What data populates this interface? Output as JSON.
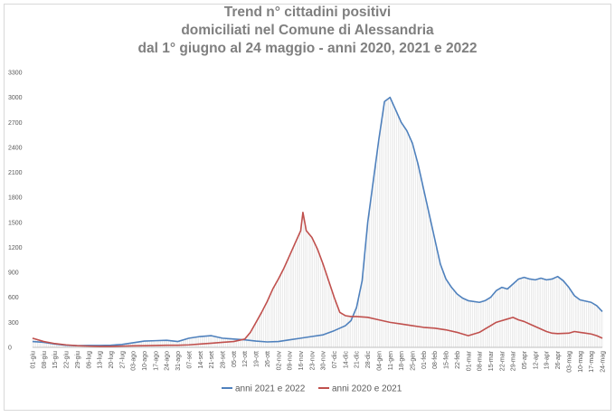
{
  "chart_data": {
    "type": "line",
    "title_lines": [
      "Trend n° cittadini positivi",
      "domiciliati nel Comune di Alessandria",
      "dal 1° giugno al 24 maggio - anni 2020, 2021 e 2022"
    ],
    "ylim": [
      0,
      3300
    ],
    "yticks": [
      0,
      300,
      600,
      900,
      1200,
      1500,
      1800,
      2100,
      2400,
      2700,
      3000,
      3300
    ],
    "x_labels": [
      "01-giu",
      "08-giu",
      "15-giu",
      "22-giu",
      "29-giu",
      "06-lug",
      "13-lug",
      "20-lug",
      "27-lug",
      "03-ago",
      "10-ago",
      "17-ago",
      "24-ago",
      "31-ago",
      "07-set",
      "14-set",
      "21-set",
      "28-set",
      "05-ott",
      "12-ott",
      "19-ott",
      "26-ott",
      "02-nov",
      "09-nov",
      "16-nov",
      "23-nov",
      "30-nov",
      "07-dic",
      "14-dic",
      "21-dic",
      "28-dic",
      "04-gen",
      "11-gen",
      "18-gen",
      "25-gen",
      "01-feb",
      "08-feb",
      "15-feb",
      "22-feb",
      "01-mar",
      "08-mar",
      "15-mar",
      "22-mar",
      "29-mar",
      "05-apr",
      "12-apr",
      "19-apr",
      "26-apr",
      "03-mag",
      "10-mag",
      "17-mag",
      "24-mag"
    ],
    "grid": false,
    "legend_position": "bottom",
    "series": [
      {
        "name": "anni 2021 e 2022",
        "color": "#4f81bd",
        "points": [
          [
            0,
            70
          ],
          [
            1,
            60
          ],
          [
            2,
            40
          ],
          [
            3,
            25
          ],
          [
            4,
            20
          ],
          [
            5,
            22
          ],
          [
            6,
            22
          ],
          [
            7,
            25
          ],
          [
            8,
            35
          ],
          [
            9,
            55
          ],
          [
            10,
            75
          ],
          [
            11,
            80
          ],
          [
            12,
            85
          ],
          [
            13,
            70
          ],
          [
            14,
            110
          ],
          [
            15,
            130
          ],
          [
            16,
            140
          ],
          [
            17,
            110
          ],
          [
            18,
            100
          ],
          [
            19,
            90
          ],
          [
            20,
            75
          ],
          [
            21,
            65
          ],
          [
            22,
            70
          ],
          [
            23,
            90
          ],
          [
            24,
            110
          ],
          [
            25,
            130
          ],
          [
            26,
            150
          ],
          [
            27,
            200
          ],
          [
            28,
            260
          ],
          [
            28.5,
            320
          ],
          [
            29,
            480
          ],
          [
            29.5,
            800
          ],
          [
            30,
            1500
          ],
          [
            30.5,
            2000
          ],
          [
            31,
            2500
          ],
          [
            31.5,
            2950
          ],
          [
            32,
            3000
          ],
          [
            32.5,
            2850
          ],
          [
            33,
            2700
          ],
          [
            33.5,
            2600
          ],
          [
            34,
            2450
          ],
          [
            34.5,
            2200
          ],
          [
            35,
            1900
          ],
          [
            35.5,
            1600
          ],
          [
            36,
            1300
          ],
          [
            36.5,
            1000
          ],
          [
            37,
            820
          ],
          [
            37.5,
            720
          ],
          [
            38,
            640
          ],
          [
            38.5,
            590
          ],
          [
            39,
            560
          ],
          [
            40,
            540
          ],
          [
            40.5,
            560
          ],
          [
            41,
            600
          ],
          [
            41.5,
            680
          ],
          [
            42,
            720
          ],
          [
            42.5,
            700
          ],
          [
            43,
            760
          ],
          [
            43.5,
            820
          ],
          [
            44,
            840
          ],
          [
            44.5,
            820
          ],
          [
            45,
            810
          ],
          [
            45.5,
            830
          ],
          [
            46,
            810
          ],
          [
            46.5,
            820
          ],
          [
            47,
            850
          ],
          [
            47.5,
            800
          ],
          [
            48,
            720
          ],
          [
            48.5,
            620
          ],
          [
            49,
            570
          ],
          [
            50,
            540
          ],
          [
            50.5,
            500
          ],
          [
            51,
            430
          ]
        ]
      },
      {
        "name": "anni 2020 e 2021",
        "color": "#c0504d",
        "points": [
          [
            0,
            110
          ],
          [
            1,
            70
          ],
          [
            2,
            45
          ],
          [
            3,
            30
          ],
          [
            4,
            20
          ],
          [
            5,
            15
          ],
          [
            6,
            12
          ],
          [
            7,
            12
          ],
          [
            8,
            15
          ],
          [
            9,
            18
          ],
          [
            10,
            20
          ],
          [
            11,
            22
          ],
          [
            12,
            25
          ],
          [
            13,
            25
          ],
          [
            14,
            30
          ],
          [
            15,
            40
          ],
          [
            16,
            50
          ],
          [
            17,
            60
          ],
          [
            18,
            70
          ],
          [
            19,
            100
          ],
          [
            19.5,
            180
          ],
          [
            20,
            300
          ],
          [
            20.5,
            420
          ],
          [
            21,
            550
          ],
          [
            21.5,
            700
          ],
          [
            22,
            820
          ],
          [
            22.5,
            950
          ],
          [
            23,
            1100
          ],
          [
            23.5,
            1250
          ],
          [
            24,
            1400
          ],
          [
            24.2,
            1620
          ],
          [
            24.5,
            1400
          ],
          [
            25,
            1320
          ],
          [
            25.5,
            1180
          ],
          [
            26,
            1000
          ],
          [
            26.5,
            800
          ],
          [
            27,
            600
          ],
          [
            27.5,
            420
          ],
          [
            28,
            380
          ],
          [
            28.5,
            370
          ],
          [
            29,
            370
          ],
          [
            30,
            360
          ],
          [
            31,
            330
          ],
          [
            32,
            300
          ],
          [
            33,
            280
          ],
          [
            34,
            260
          ],
          [
            35,
            240
          ],
          [
            36,
            230
          ],
          [
            37,
            210
          ],
          [
            38,
            180
          ],
          [
            39,
            140
          ],
          [
            39.5,
            160
          ],
          [
            40,
            180
          ],
          [
            40.5,
            220
          ],
          [
            41,
            260
          ],
          [
            41.5,
            300
          ],
          [
            42,
            320
          ],
          [
            42.5,
            340
          ],
          [
            43,
            360
          ],
          [
            43.5,
            330
          ],
          [
            44,
            310
          ],
          [
            44.5,
            280
          ],
          [
            45,
            250
          ],
          [
            45.5,
            220
          ],
          [
            46,
            190
          ],
          [
            46.5,
            170
          ],
          [
            47,
            165
          ],
          [
            48,
            170
          ],
          [
            48.5,
            190
          ],
          [
            49,
            180
          ],
          [
            49.5,
            170
          ],
          [
            50,
            160
          ],
          [
            50.5,
            140
          ],
          [
            51,
            110
          ]
        ]
      }
    ]
  }
}
